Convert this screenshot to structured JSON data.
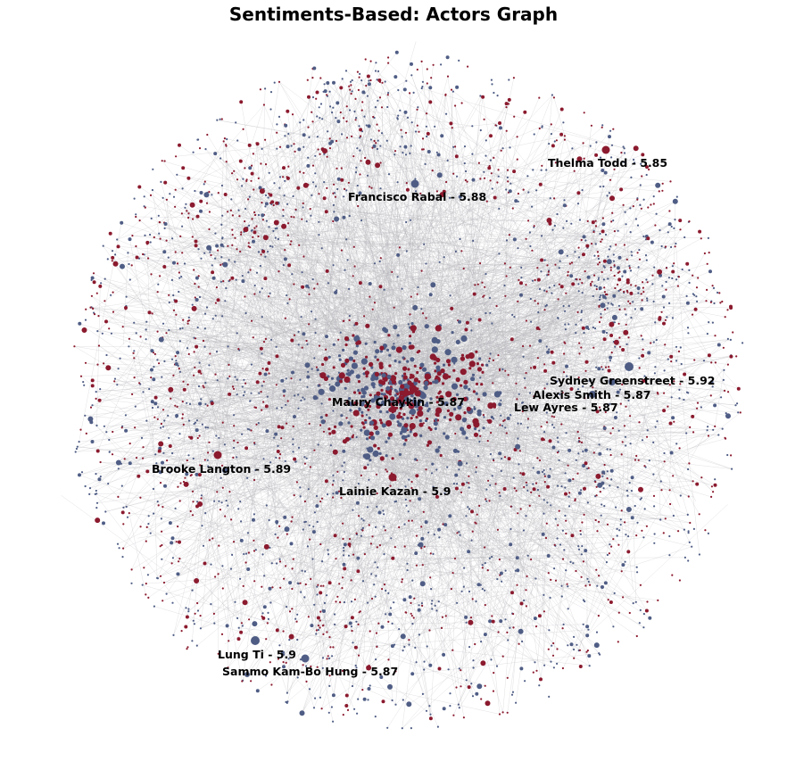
{
  "title": "Sentiments-Based: Actors Graph",
  "colors": {
    "background": "#ffffff",
    "edge": "#b4b4b8",
    "node_red": "#8b1a2e",
    "node_blue": "#4f5d85",
    "label": "#000000"
  },
  "labeled_nodes": [
    {
      "id": "thelma-todd",
      "label": "Thelma Todd - 5.85",
      "color": "red"
    },
    {
      "id": "francisco-rabal",
      "label": "Francisco Rabal - 5.88",
      "color": "blue"
    },
    {
      "id": "sydney-greenstreet",
      "label": "Sydney Greenstreet - 5.92",
      "color": "blue"
    },
    {
      "id": "alexis-smith",
      "label": "Alexis Smith - 5.87",
      "color": "blue"
    },
    {
      "id": "lew-ayres",
      "label": "Lew Ayres - 5.87",
      "color": "blue"
    },
    {
      "id": "maury-chaykin",
      "label": "Maury Chaykin - 5.87",
      "color": "red"
    },
    {
      "id": "brooke-langton",
      "label": "Brooke Langton - 5.89",
      "color": "red"
    },
    {
      "id": "lainie-kazan",
      "label": "Lainie Kazan - 5.9",
      "color": "red"
    },
    {
      "id": "lung-ti",
      "label": "Lung Ti - 5.9",
      "color": "blue"
    },
    {
      "id": "sammo-kam-bo-hung",
      "label": "Sammo Kam-Bo Hung - 5.87",
      "color": "blue"
    }
  ]
}
